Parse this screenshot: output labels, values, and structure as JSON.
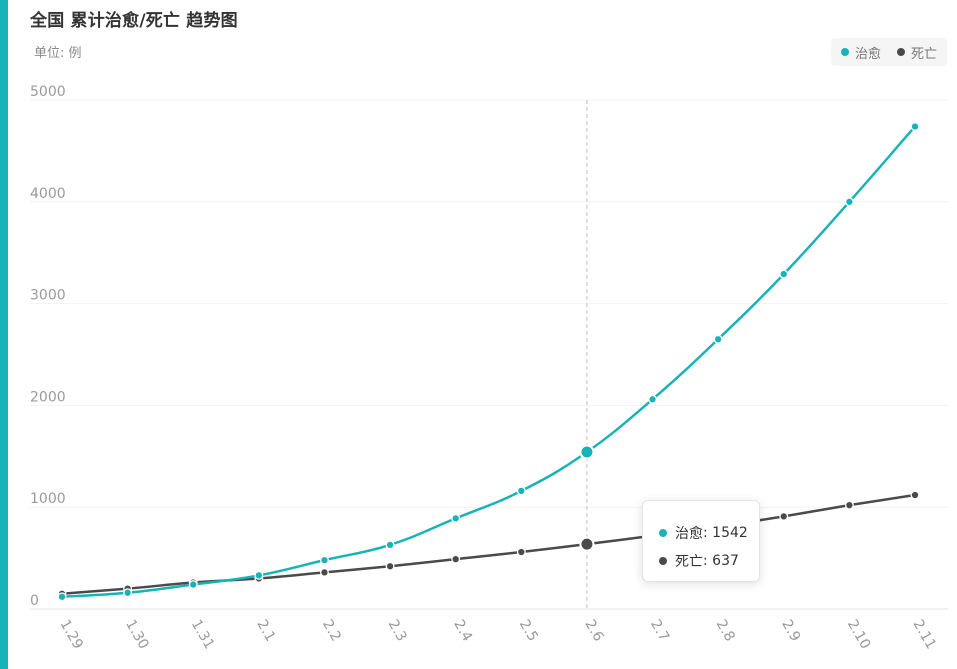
{
  "title": "全国 累计治愈/死亡 趋势图",
  "subtitle": "单位: 例",
  "legend": {
    "items": [
      {
        "label": "治愈",
        "color": "#17b3b8"
      },
      {
        "label": "死亡",
        "color": "#4a4a4a"
      }
    ]
  },
  "tooltip": {
    "rows": [
      {
        "label": "治愈",
        "sep": ": ",
        "value": "1542",
        "color": "#17b3b8"
      },
      {
        "label": "死亡",
        "sep": ": ",
        "value": "637",
        "color": "#4a4a4a"
      }
    ],
    "active_category": "2.6"
  },
  "chart_data": {
    "type": "line",
    "title": "全国 累计治愈/死亡 趋势图",
    "subtitle": "单位: 例",
    "categories": [
      "1.29",
      "1.30",
      "1.31",
      "2.1",
      "2.2",
      "2.3",
      "2.4",
      "2.5",
      "2.6",
      "2.7",
      "2.8",
      "2.9",
      "2.10",
      "2.11"
    ],
    "series": [
      {
        "name": "治愈",
        "color": "#17b3b8",
        "values": [
          120,
          160,
          240,
          330,
          480,
          630,
          890,
          1160,
          1542,
          2060,
          2650,
          3290,
          4000,
          4740
        ]
      },
      {
        "name": "死亡",
        "color": "#4a4a4a",
        "values": [
          150,
          200,
          260,
          300,
          360,
          420,
          490,
          560,
          637,
          720,
          810,
          910,
          1020,
          1120
        ]
      }
    ],
    "ylim": [
      0,
      5000
    ],
    "yticks": [
      "0",
      "1000",
      "2000",
      "3000",
      "4000",
      "5000"
    ],
    "grid": true,
    "legend_position": "top-right"
  }
}
